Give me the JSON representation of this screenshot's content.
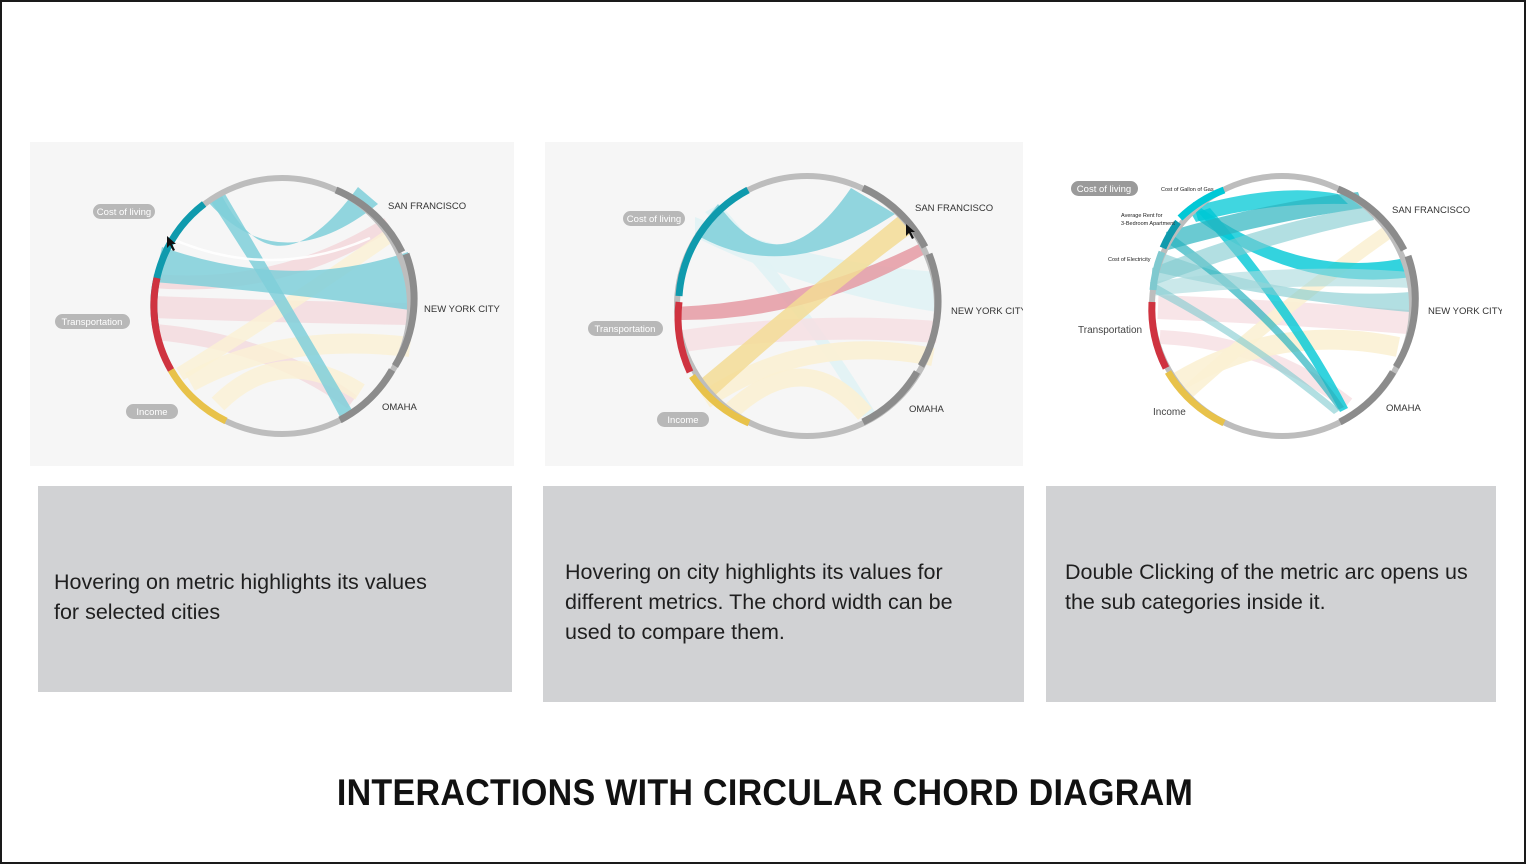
{
  "title": "INTERACTIONS WITH CIRCULAR CHORD DIAGRAM",
  "colors": {
    "cost_of_living": "#0f9aad",
    "transportation": "#cf3340",
    "income": "#e8c24a",
    "city_arc": "#8c8c8c",
    "empty_arc": "#bdbdbd",
    "highlight_cyan": "#00c8d6",
    "pill": "#b8b8b8"
  },
  "panels": [
    {
      "metrics": {
        "cost_of_living": "Cost of living",
        "transportation": "Transportation",
        "income": "Income"
      },
      "cities": {
        "sf": "SAN FRANCISCO",
        "nyc": "NEW YORK CITY",
        "omaha": "OMAHA"
      },
      "caption_lines": [
        "Hovering on metric highlights its values",
        "for selected cities"
      ]
    },
    {
      "metrics": {
        "cost_of_living": "Cost of living",
        "transportation": "Transportation",
        "income": "Income"
      },
      "cities": {
        "sf": "SAN FRANCISCO",
        "nyc": "NEW YORK CITY",
        "omaha": "OMAHA"
      },
      "caption_lines": [
        "Hovering on city highlights its values for",
        "different metrics. The chord width can be",
        "used to compare them."
      ]
    },
    {
      "metrics": {
        "cost_of_living": "Cost of living",
        "transportation": "Transportation",
        "income": "Income"
      },
      "subcategories": {
        "gas": "Cost of Gallon of Gas",
        "rent_line1": "Average Rent for",
        "rent_line2": "3-Bedroom Apartment",
        "electricity": "Cost of Electricity"
      },
      "cities": {
        "sf": "SAN FRANCISCO",
        "nyc": "NEW YORK CITY",
        "omaha": "OMAHA"
      },
      "caption_lines": [
        "Double Clicking of the metric arc opens us",
        "the sub categories inside it."
      ]
    }
  ]
}
